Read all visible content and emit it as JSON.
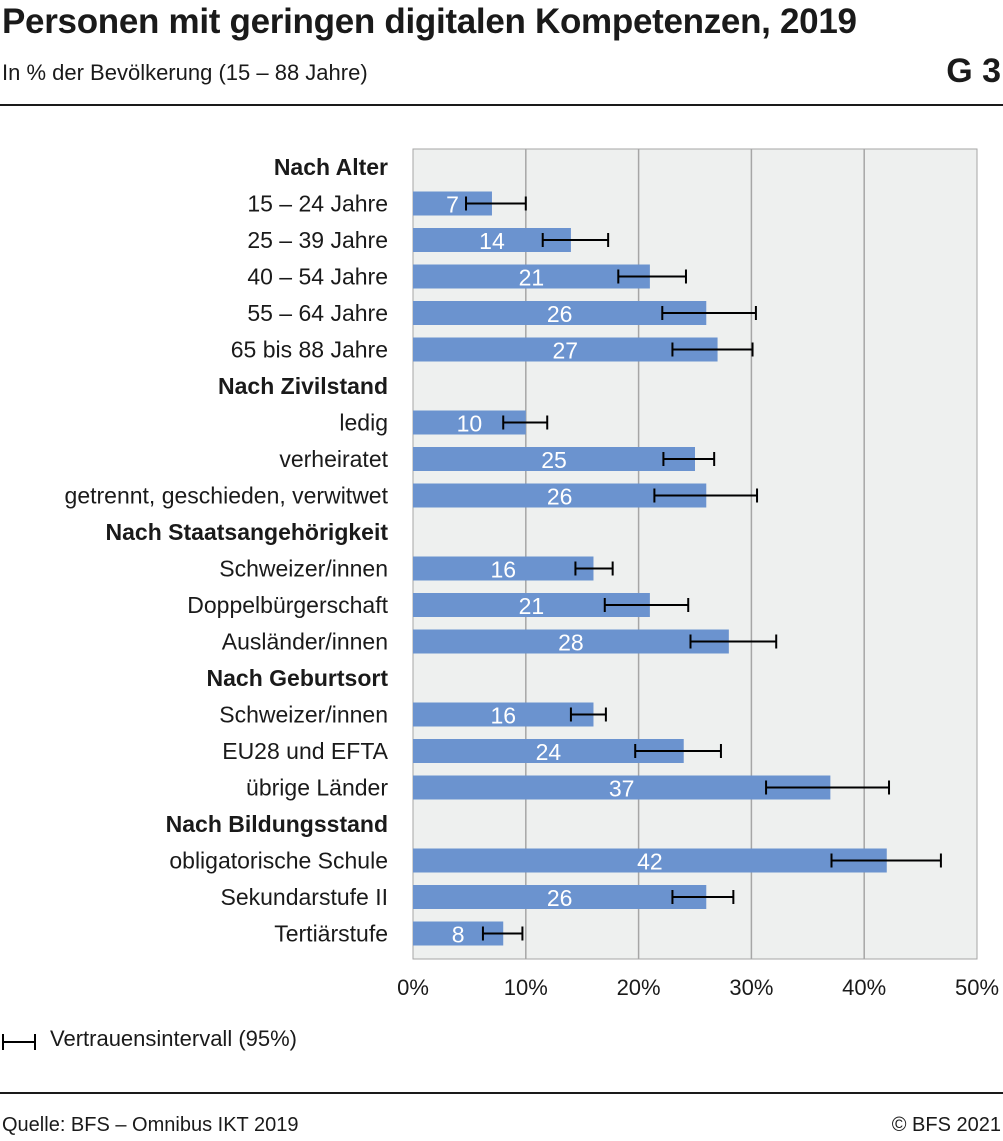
{
  "header": {
    "title": "Personen mit geringen digitalen Kompetenzen, 2019",
    "subtitle": "In % der Bevölkerung (15 – 88 Jahre)",
    "graphic_id": "G 3"
  },
  "footer": {
    "source": "Quelle: BFS – Omnibus IKT 2019",
    "copyright": "© BFS 2021"
  },
  "legend": {
    "confidence_label": "Vertrauensintervall (95%)"
  },
  "colors": {
    "bar": "#6b93cf",
    "plot_bg": "#eef0ef",
    "grid": "#a6a6a6",
    "error_bar": "#000000",
    "value_label": "#ffffff",
    "text": "#1a1a1a"
  },
  "chart_data": {
    "type": "bar",
    "orientation": "horizontal",
    "xlabel": "",
    "ylabel": "",
    "xlim": [
      0,
      50
    ],
    "x_ticks": [
      "0%",
      "10%",
      "20%",
      "30%",
      "40%",
      "50%"
    ],
    "grid": true,
    "groups": [
      {
        "name": "Nach Alter",
        "items": [
          {
            "label": "15 – 24 Jahre",
            "value": 7,
            "display": "7",
            "ci": [
              4.7,
              10.0
            ]
          },
          {
            "label": "25 – 39 Jahre",
            "value": 14,
            "display": "14",
            "ci": [
              11.5,
              17.3
            ]
          },
          {
            "label": "40 – 54 Jahre",
            "value": 21,
            "display": "21",
            "ci": [
              18.2,
              24.2
            ]
          },
          {
            "label": "55 – 64 Jahre",
            "value": 26,
            "display": "26",
            "ci": [
              22.1,
              30.4
            ]
          },
          {
            "label": "65 bis 88 Jahre",
            "value": 27,
            "display": "27",
            "ci": [
              23.0,
              30.1
            ]
          }
        ]
      },
      {
        "name": "Nach Zivilstand",
        "items": [
          {
            "label": "ledig",
            "value": 10,
            "display": "10",
            "ci": [
              8.0,
              11.9
            ]
          },
          {
            "label": "verheiratet",
            "value": 25,
            "display": "25",
            "ci": [
              22.2,
              26.7
            ]
          },
          {
            "label": "getrennt, geschieden, verwitwet",
            "value": 26,
            "display": "26",
            "ci": [
              21.4,
              30.5
            ]
          }
        ]
      },
      {
        "name": "Nach Staatsangehörigkeit",
        "items": [
          {
            "label": "Schweizer/innen",
            "value": 16,
            "display": "16",
            "ci": [
              14.4,
              17.7
            ]
          },
          {
            "label": "Doppelbürgerschaft",
            "value": 21,
            "display": "21",
            "ci": [
              17.0,
              24.4
            ]
          },
          {
            "label": "Ausländer/innen",
            "value": 28,
            "display": "28",
            "ci": [
              24.6,
              32.2
            ]
          }
        ]
      },
      {
        "name": "Nach Geburtsort",
        "items": [
          {
            "label": "Schweizer/innen",
            "value": 16,
            "display": "16",
            "ci": [
              14.0,
              17.1
            ]
          },
          {
            "label": "EU28 und EFTA",
            "value": 24,
            "display": "24",
            "ci": [
              19.7,
              27.3
            ]
          },
          {
            "label": "übrige Länder",
            "value": 37,
            "display": "37",
            "ci": [
              31.3,
              42.2
            ]
          }
        ]
      },
      {
        "name": "Nach Bildungsstand",
        "items": [
          {
            "label": "obligatorische Schule",
            "value": 42,
            "display": "42",
            "ci": [
              37.1,
              46.8
            ]
          },
          {
            "label": "Sekundarstufe II",
            "value": 26,
            "display": "26",
            "ci": [
              23.0,
              28.4
            ]
          },
          {
            "label": "Tertiärstufe",
            "value": 8,
            "display": "8",
            "ci": [
              6.2,
              9.7
            ]
          }
        ]
      }
    ]
  }
}
